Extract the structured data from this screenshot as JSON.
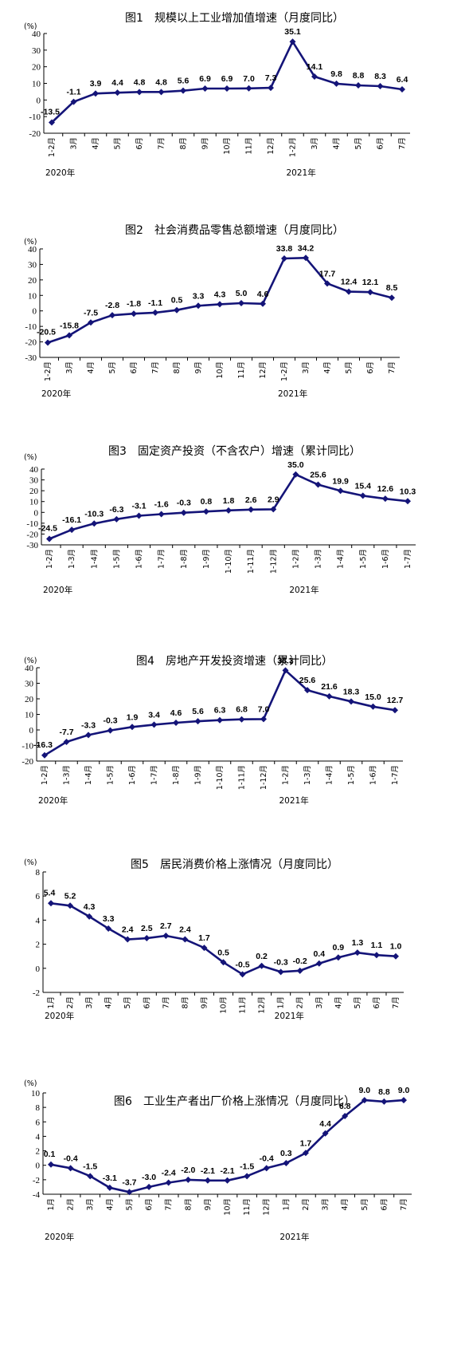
{
  "line_color": "#141478",
  "chart_data": [
    {
      "type": "line",
      "title": "图1　规模以上工业增加值增速（月度同比）",
      "unit": "(%)",
      "categories": [
        "1-2月",
        "3月",
        "4月",
        "5月",
        "6月",
        "7月",
        "8月",
        "9月",
        "10月",
        "11月",
        "12月",
        "1-2月",
        "3月",
        "4月",
        "5月",
        "6月",
        "7月"
      ],
      "values": [
        -13.5,
        -1.1,
        3.9,
        4.4,
        4.8,
        4.8,
        5.6,
        6.9,
        6.9,
        7.0,
        7.3,
        35.1,
        14.1,
        9.8,
        8.8,
        8.3,
        6.4
      ],
      "value_labels": [
        "-13.5",
        "-1.1",
        "3.9",
        "4.4",
        "4.8",
        "4.8",
        "5.6",
        "6.9",
        "6.9",
        "7.0",
        "7.3",
        "35.1",
        "14.1",
        "9.8",
        "8.8",
        "8.3",
        "6.4"
      ],
      "ylim": [
        -20,
        40
      ],
      "yticks": [
        "-20",
        "-10",
        "0",
        "10",
        "20",
        "30",
        "40"
      ],
      "years": [
        {
          "label": "2020年",
          "index": 0
        },
        {
          "label": "2021年",
          "index": 11
        }
      ]
    },
    {
      "type": "line",
      "title": "图2　社会消费品零售总额增速（月度同比）",
      "unit": "(%)",
      "categories": [
        "1-2月",
        "3月",
        "4月",
        "5月",
        "6月",
        "7月",
        "8月",
        "9月",
        "10月",
        "11月",
        "12月",
        "1-2月",
        "3月",
        "4月",
        "5月",
        "6月",
        "7月"
      ],
      "values": [
        -20.5,
        -15.8,
        -7.5,
        -2.8,
        -1.8,
        -1.1,
        0.5,
        3.3,
        4.3,
        5.0,
        4.6,
        33.8,
        34.2,
        17.7,
        12.4,
        12.1,
        8.5
      ],
      "value_labels": [
        "-20.5",
        "-15.8",
        "-7.5",
        "-2.8",
        "-1.8",
        "-1.1",
        "0.5",
        "3.3",
        "4.3",
        "5.0",
        "4.6",
        "33.8",
        "34.2",
        "17.7",
        "12.4",
        "12.1",
        "8.5"
      ],
      "ylim": [
        -30,
        40
      ],
      "yticks": [
        "-30",
        "-20",
        "-10",
        "0",
        "10",
        "20",
        "30",
        "40"
      ],
      "years": [
        {
          "label": "2020年",
          "index": 0
        },
        {
          "label": "2021年",
          "index": 11
        }
      ]
    },
    {
      "type": "line",
      "title": "图3　固定资产投资（不含农户）增速（累计同比）",
      "unit": "(%)",
      "categories": [
        "1-2月",
        "1-3月",
        "1-4月",
        "1-5月",
        "1-6月",
        "1-7月",
        "1-8月",
        "1-9月",
        "1-10月",
        "1-11月",
        "1-12月",
        "1-2月",
        "1-3月",
        "1-4月",
        "1-5月",
        "1-6月",
        "1-7月"
      ],
      "values": [
        -24.5,
        -16.1,
        -10.3,
        -6.3,
        -3.1,
        -1.6,
        -0.3,
        0.8,
        1.8,
        2.6,
        2.9,
        35.0,
        25.6,
        19.9,
        15.4,
        12.6,
        10.3
      ],
      "value_labels": [
        "-24.5",
        "-16.1",
        "-10.3",
        "-6.3",
        "-3.1",
        "-1.6",
        "-0.3",
        "0.8",
        "1.8",
        "2.6",
        "2.9",
        "35.0",
        "25.6",
        "19.9",
        "15.4",
        "12.6",
        "10.3"
      ],
      "ylim": [
        -30,
        40
      ],
      "yticks": [
        "-30",
        "-20",
        "-10",
        "0",
        "10",
        "20",
        "30",
        "40"
      ],
      "years": [
        {
          "label": "2020年",
          "index": 0
        },
        {
          "label": "2021年",
          "index": 11
        }
      ]
    },
    {
      "type": "line",
      "title": "图4　房地产开发投资增速（累计同比）",
      "unit": "(%)",
      "categories": [
        "1-2月",
        "1-3月",
        "1-4月",
        "1-5月",
        "1-6月",
        "1-7月",
        "1-8月",
        "1-9月",
        "1-10月",
        "1-11月",
        "1-12月",
        "1-2月",
        "1-3月",
        "1-4月",
        "1-5月",
        "1-6月",
        "1-7月"
      ],
      "values": [
        -16.3,
        -7.7,
        -3.3,
        -0.3,
        1.9,
        3.4,
        4.6,
        5.6,
        6.3,
        6.8,
        7.0,
        38.3,
        25.6,
        21.6,
        18.3,
        15.0,
        12.7
      ],
      "value_labels": [
        "-16.3",
        "-7.7",
        "-3.3",
        "-0.3",
        "1.9",
        "3.4",
        "4.6",
        "5.6",
        "6.3",
        "6.8",
        "7.0",
        "38.3",
        "25.6",
        "21.6",
        "18.3",
        "15.0",
        "12.7"
      ],
      "ylim": [
        -20,
        40
      ],
      "yticks": [
        "-20",
        "-10",
        "0",
        "10",
        "20",
        "30",
        "40"
      ],
      "years": [
        {
          "label": "2020年",
          "index": 0
        },
        {
          "label": "2021年",
          "index": 11
        }
      ]
    },
    {
      "type": "line",
      "title": "图5　居民消费价格上涨情况（月度同比）",
      "unit": "(%)",
      "categories": [
        "1月",
        "2月",
        "3月",
        "4月",
        "5月",
        "6月",
        "7月",
        "8月",
        "9月",
        "10月",
        "11月",
        "12月",
        "1月",
        "2月",
        "3月",
        "4月",
        "5月",
        "6月",
        "7月"
      ],
      "values": [
        5.4,
        5.2,
        4.3,
        3.3,
        2.4,
        2.5,
        2.7,
        2.4,
        1.7,
        0.5,
        -0.5,
        0.2,
        -0.3,
        -0.2,
        0.4,
        0.9,
        1.3,
        1.1,
        1.0
      ],
      "value_labels": [
        "5.4",
        "5.2",
        "4.3",
        "3.3",
        "2.4",
        "2.5",
        "2.7",
        "2.4",
        "1.7",
        "0.5",
        "-0.5",
        "0.2",
        "-0.3",
        "-0.2",
        "0.4",
        "0.9",
        "1.3",
        "1.1",
        "1.0"
      ],
      "ylim": [
        -2,
        8
      ],
      "yticks": [
        "-2",
        "0",
        "2",
        "4",
        "6",
        "8"
      ],
      "years": [
        {
          "label": "2020年",
          "index": 0
        },
        {
          "label": "2021年",
          "index": 12
        }
      ]
    },
    {
      "type": "line",
      "title": "图6　工业生产者出厂价格上涨情况（月度同比）",
      "unit": "(%)",
      "categories": [
        "1月",
        "2月",
        "3月",
        "4月",
        "5月",
        "6月",
        "7月",
        "8月",
        "9月",
        "10月",
        "11月",
        "12月",
        "1月",
        "2月",
        "3月",
        "4月",
        "5月",
        "6月",
        "7月"
      ],
      "values": [
        0.1,
        -0.4,
        -1.5,
        -3.1,
        -3.7,
        -3.0,
        -2.4,
        -2.0,
        -2.1,
        -2.1,
        -1.5,
        -0.4,
        0.3,
        1.7,
        4.4,
        6.8,
        9.0,
        8.8,
        9.0
      ],
      "value_labels": [
        "0.1",
        "-0.4",
        "-1.5",
        "-3.1",
        "-3.7",
        "-3.0",
        "-2.4",
        "-2.0",
        "-2.1",
        "-2.1",
        "-1.5",
        "-0.4",
        "0.3",
        "1.7",
        "4.4",
        "6.8",
        "9.0",
        "8.8",
        "9.0"
      ],
      "ylim": [
        -4,
        10
      ],
      "yticks": [
        "-4",
        "-2",
        "0",
        "2",
        "4",
        "6",
        "8",
        "10"
      ],
      "years": [
        {
          "label": "2020年",
          "index": 0
        },
        {
          "label": "2021年",
          "index": 12
        }
      ]
    }
  ]
}
